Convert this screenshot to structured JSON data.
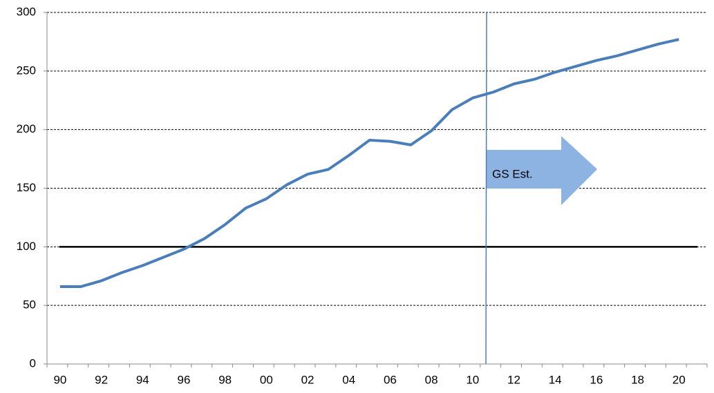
{
  "chart_data": {
    "type": "line",
    "categories": [
      "90",
      null,
      "92",
      null,
      "94",
      null,
      "96",
      null,
      "98",
      null,
      "00",
      null,
      "02",
      null,
      "04",
      null,
      "06",
      null,
      "08",
      null,
      "10",
      null,
      "12",
      null,
      "14",
      null,
      "16",
      null,
      "18",
      null,
      "20",
      null
    ],
    "series": [
      {
        "color": "#4a7ebb",
        "values": [
          66,
          66,
          71,
          78,
          84,
          91,
          98,
          107,
          119,
          133,
          141,
          153,
          162,
          166,
          178,
          191,
          190,
          187,
          199,
          217,
          227,
          232,
          239,
          243,
          249,
          254,
          259,
          263,
          268,
          273,
          277,
          null
        ]
      }
    ],
    "ylim": [
      0,
      300
    ],
    "yticks": [
      0,
      50,
      100,
      150,
      200,
      250,
      300
    ],
    "grid": true,
    "reference_line": 100,
    "annotation": "GS Est."
  }
}
